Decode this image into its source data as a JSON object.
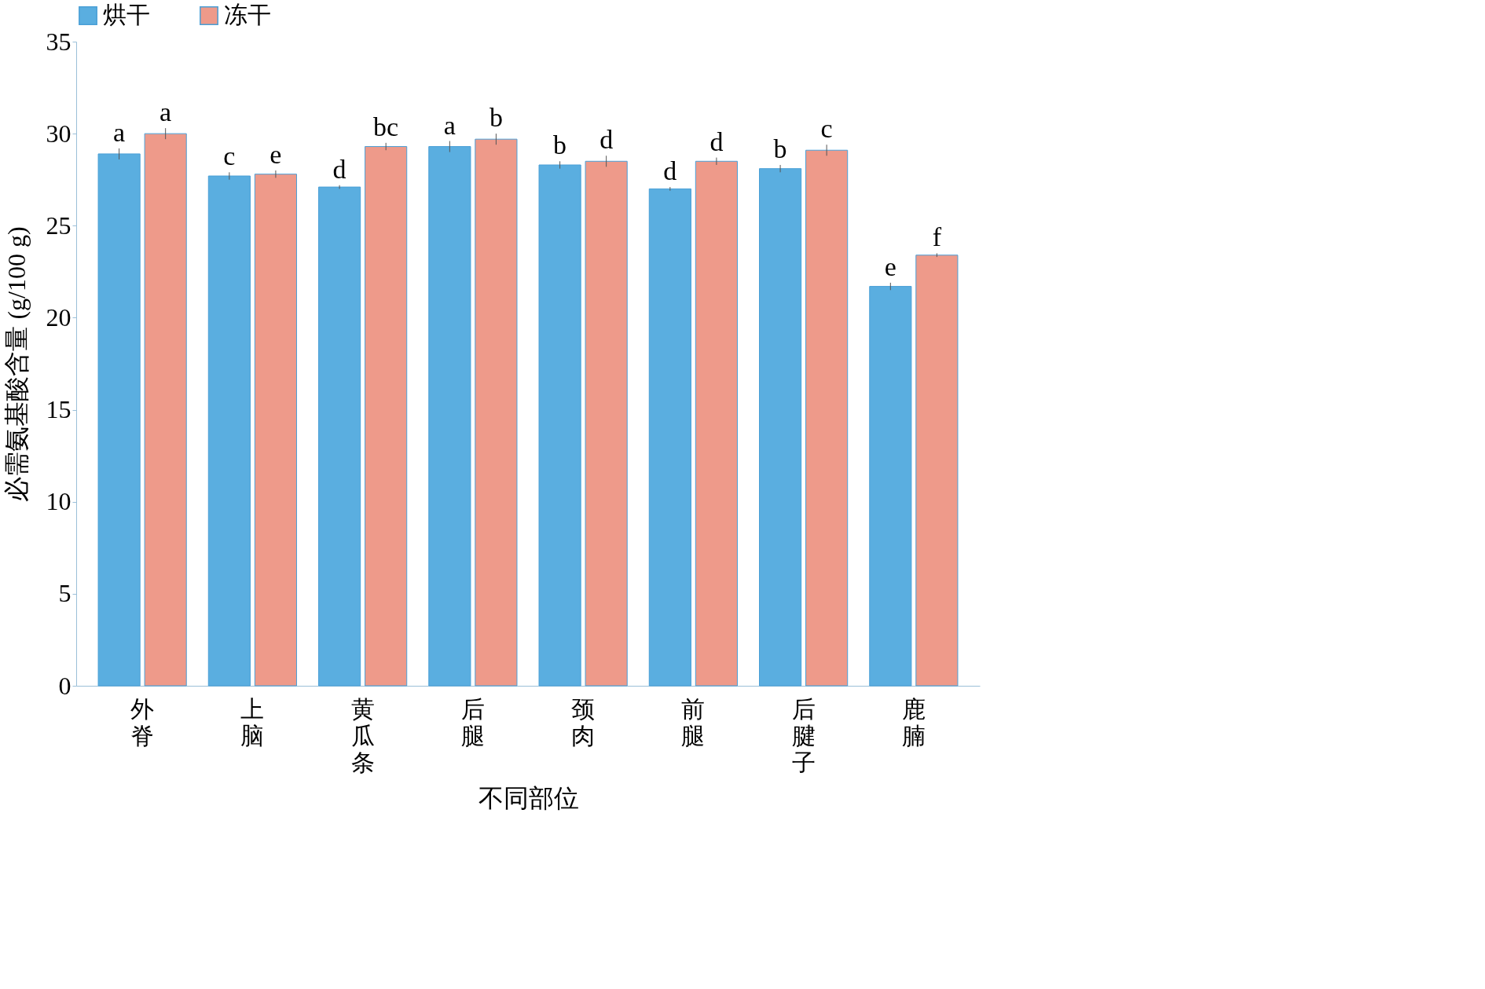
{
  "chart_data": {
    "type": "bar",
    "xlabel": "不同部位",
    "ylabel": "必需氨基酸含量 (g/100 g)",
    "categories": [
      "外脊",
      "上脑",
      "黄瓜条",
      "后腿",
      "颈肉",
      "前腿",
      "后腱子",
      "鹿腩"
    ],
    "series": [
      {
        "name": "烘干",
        "color": "#5aaee0",
        "values": [
          28.9,
          27.7,
          27.1,
          29.3,
          28.3,
          27.0,
          28.1,
          21.7
        ],
        "errors": [
          0.3,
          0.2,
          0.1,
          0.3,
          0.2,
          0.1,
          0.2,
          0.2
        ],
        "value_labels": [
          "a",
          "c",
          "d",
          "a",
          "b",
          "d",
          "b",
          "e"
        ]
      },
      {
        "name": "冻干",
        "color": "#ee9a8a",
        "values": [
          30.0,
          27.8,
          29.3,
          29.7,
          28.5,
          28.5,
          29.1,
          23.4
        ],
        "errors": [
          0.3,
          0.2,
          0.2,
          0.3,
          0.3,
          0.2,
          0.3,
          0.1
        ],
        "value_labels": [
          "a",
          "e",
          "bc",
          "b",
          "d",
          "d",
          "c",
          "f"
        ]
      }
    ],
    "ylim": [
      0,
      35
    ],
    "yticks": [
      0,
      5,
      10,
      15,
      20,
      25,
      30,
      35
    ],
    "grid": false,
    "legend": "top"
  }
}
